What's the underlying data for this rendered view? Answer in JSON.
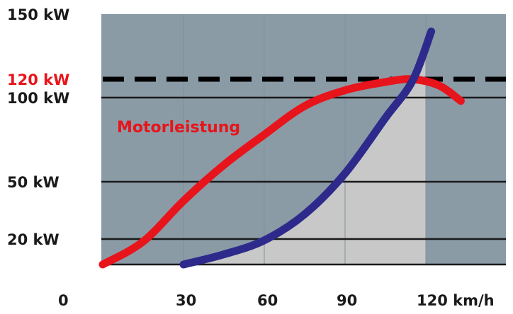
{
  "chart_data": {
    "type": "line",
    "title": "",
    "xlabel": "",
    "ylabel": "",
    "xlim": [
      0,
      150
    ],
    "ylim": [
      0,
      150
    ],
    "x_ticks": [
      {
        "value": 0,
        "label": "0"
      },
      {
        "value": 30,
        "label": "30"
      },
      {
        "value": 60,
        "label": "60"
      },
      {
        "value": 90,
        "label": "90"
      },
      {
        "value": 120,
        "label": "120 km/h"
      }
    ],
    "y_ticks": [
      {
        "value": 20,
        "label": "20 kW"
      },
      {
        "value": 50,
        "label": "50 kW"
      },
      {
        "value": 100,
        "label": "100 kW"
      },
      {
        "value": 120,
        "label": "120 kW",
        "highlight": true
      },
      {
        "value": 150,
        "label": "150 kW"
      }
    ],
    "reference_line": {
      "value": 120,
      "style": "dashed",
      "color": "#000000"
    },
    "shaded_region": {
      "color": "#c8c8c8",
      "x_end": 120
    },
    "background_color": "#8a9ba6",
    "annotations": [
      {
        "text": "Motorleistung",
        "color": "#e8141b"
      }
    ],
    "series": [
      {
        "color": "#e8141b",
        "points": [
          [
            0,
            0
          ],
          [
            15,
            18
          ],
          [
            30,
            40
          ],
          [
            45,
            60
          ],
          [
            60,
            78
          ],
          [
            75,
            95
          ],
          [
            90,
            108
          ],
          [
            105,
            117
          ],
          [
            115,
            120
          ],
          [
            125,
            113
          ],
          [
            133,
            98
          ]
        ]
      },
      {
        "color": "#2e2a8c",
        "points": [
          [
            30,
            0
          ],
          [
            45,
            8
          ],
          [
            60,
            19
          ],
          [
            75,
            33
          ],
          [
            90,
            55
          ],
          [
            105,
            88
          ],
          [
            115,
            118
          ],
          [
            122,
            142
          ]
        ]
      }
    ],
    "grid": true
  }
}
